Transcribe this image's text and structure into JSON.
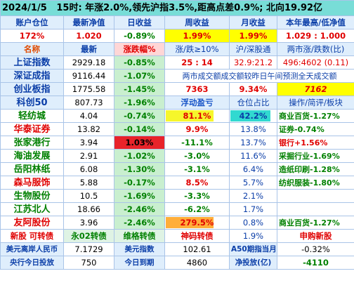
{
  "header": {
    "date": "2024/1/5",
    "summary": "15时: 年涨2.0%,领先沪指3.5%,距高点差0.9%; 北向19.92亿"
  },
  "account_row": {
    "labels": [
      "账户仓位",
      "最新净值",
      "日收益",
      "周收益",
      "月收益",
      "本年最高/低净值"
    ],
    "values": [
      "172%",
      "1.020",
      "-0.89%",
      "1.99%",
      "1.99%",
      "1.029 : 1.000"
    ],
    "value_colors": [
      "red",
      "red",
      "green",
      "red",
      "red",
      "red"
    ]
  },
  "index_header": [
    "名称",
    "最新",
    "涨跌幅%",
    "涨/跌≥10%",
    "沪/深股通",
    "两市涨/跌数(比)"
  ],
  "indices": [
    {
      "name": "上证指数",
      "price": "2929.18",
      "change": "-0.85%"
    },
    {
      "name": "深证成指",
      "price": "9116.44",
      "change": "-1.07%"
    },
    {
      "name": "创业板指",
      "price": "1775.58",
      "change": "-1.45%"
    },
    {
      "name": "科创50",
      "price": "807.73",
      "change": "-1.96%"
    }
  ],
  "market_stats": {
    "limit_ratio": "25 : 14",
    "connect_ratio": "32.9:21.2",
    "updown_ratio": "496:4602 (0.11)",
    "turnover_note": "两市成交额成交额较昨日午间预测全天成交额",
    "turnover_values": [
      "7363",
      "9.34%",
      "7162"
    ]
  },
  "holdings_header": [
    "浮动盈亏",
    "仓位占比",
    "操作/简评/板块"
  ],
  "holdings": [
    {
      "name": "轻纺城",
      "price": "4.04",
      "change": "-0.74%",
      "pnl": "81.1%",
      "pnl_fill": 0.75,
      "pnl_fill_color": "yellow",
      "position": "42.2%",
      "position_fill": 0.85,
      "note": "商业百货-1.27%",
      "note_color": "green",
      "name_color": "green",
      "change_highlight": false
    },
    {
      "name": "华泰证券",
      "price": "13.82",
      "change": "-0.14%",
      "pnl": "9.9%",
      "position": "13.8%",
      "note": "证券-0.74%",
      "note_color": "green",
      "name_color": "red",
      "change_highlight": false
    },
    {
      "name": "张家港行",
      "price": "3.94",
      "change": "1.03%",
      "pnl": "-11.1%",
      "position": "13.7%",
      "note": "银行+1.56%",
      "note_color": "red",
      "name_color": "green",
      "change_highlight": true
    },
    {
      "name": "海油发展",
      "price": "2.91",
      "change": "-1.02%",
      "pnl": "-3.0%",
      "position": "11.6%",
      "note": "采掘行业-1.69%",
      "note_color": "green",
      "name_color": "green",
      "change_highlight": false
    },
    {
      "name": "岳阳林纸",
      "price": "6.08",
      "change": "-1.30%",
      "pnl": "-3.1%",
      "position": "6.4%",
      "note": "造纸印刷-1.28%",
      "note_color": "green",
      "name_color": "green",
      "change_highlight": false
    },
    {
      "name": "森马服饰",
      "price": "5.88",
      "change": "-0.17%",
      "pnl": "8.5%",
      "position": "5.7%",
      "note": "纺织服装-1.80%",
      "note_color": "green",
      "name_color": "red",
      "change_highlight": false
    },
    {
      "name": "生物股份",
      "price": "10.5",
      "change": "-1.69%",
      "pnl": "-3.3%",
      "position": "2.1%",
      "note": "",
      "note_color": "green",
      "name_color": "green",
      "change_highlight": false
    },
    {
      "name": "江苏北人",
      "price": "18.66",
      "change": "-2.46%",
      "pnl": "-6.2%",
      "position": "1.7%",
      "note": "",
      "note_color": "green",
      "name_color": "green",
      "change_highlight": false
    },
    {
      "name": "友阿股份",
      "price": "3.96",
      "change": "-2.46%",
      "pnl": "279.5%",
      "pnl_fill": 0.75,
      "pnl_fill_color": "orange",
      "position": "0.8%",
      "note": "商业百货-1.27%",
      "note_color": "green",
      "name_color": "red",
      "change_highlight": false
    }
  ],
  "bonds_row": {
    "label": "新股 可转债",
    "col2": "永02转债",
    "col3": "维格转债",
    "col4": "神码转债",
    "col5": "1.9%",
    "col6": "申购新股"
  },
  "footer": [
    {
      "l1": "美元离岸人民币",
      "v1": "7.1729",
      "l2": "美元指数",
      "v2": "102.61",
      "l3": "A50期指当月",
      "v3": "-0.32%"
    },
    {
      "l1": "央行今日投放",
      "v1": "750",
      "l2": "今日到期",
      "v2": "4860",
      "l3": "净投放(亿)",
      "v3": "-4110"
    }
  ]
}
